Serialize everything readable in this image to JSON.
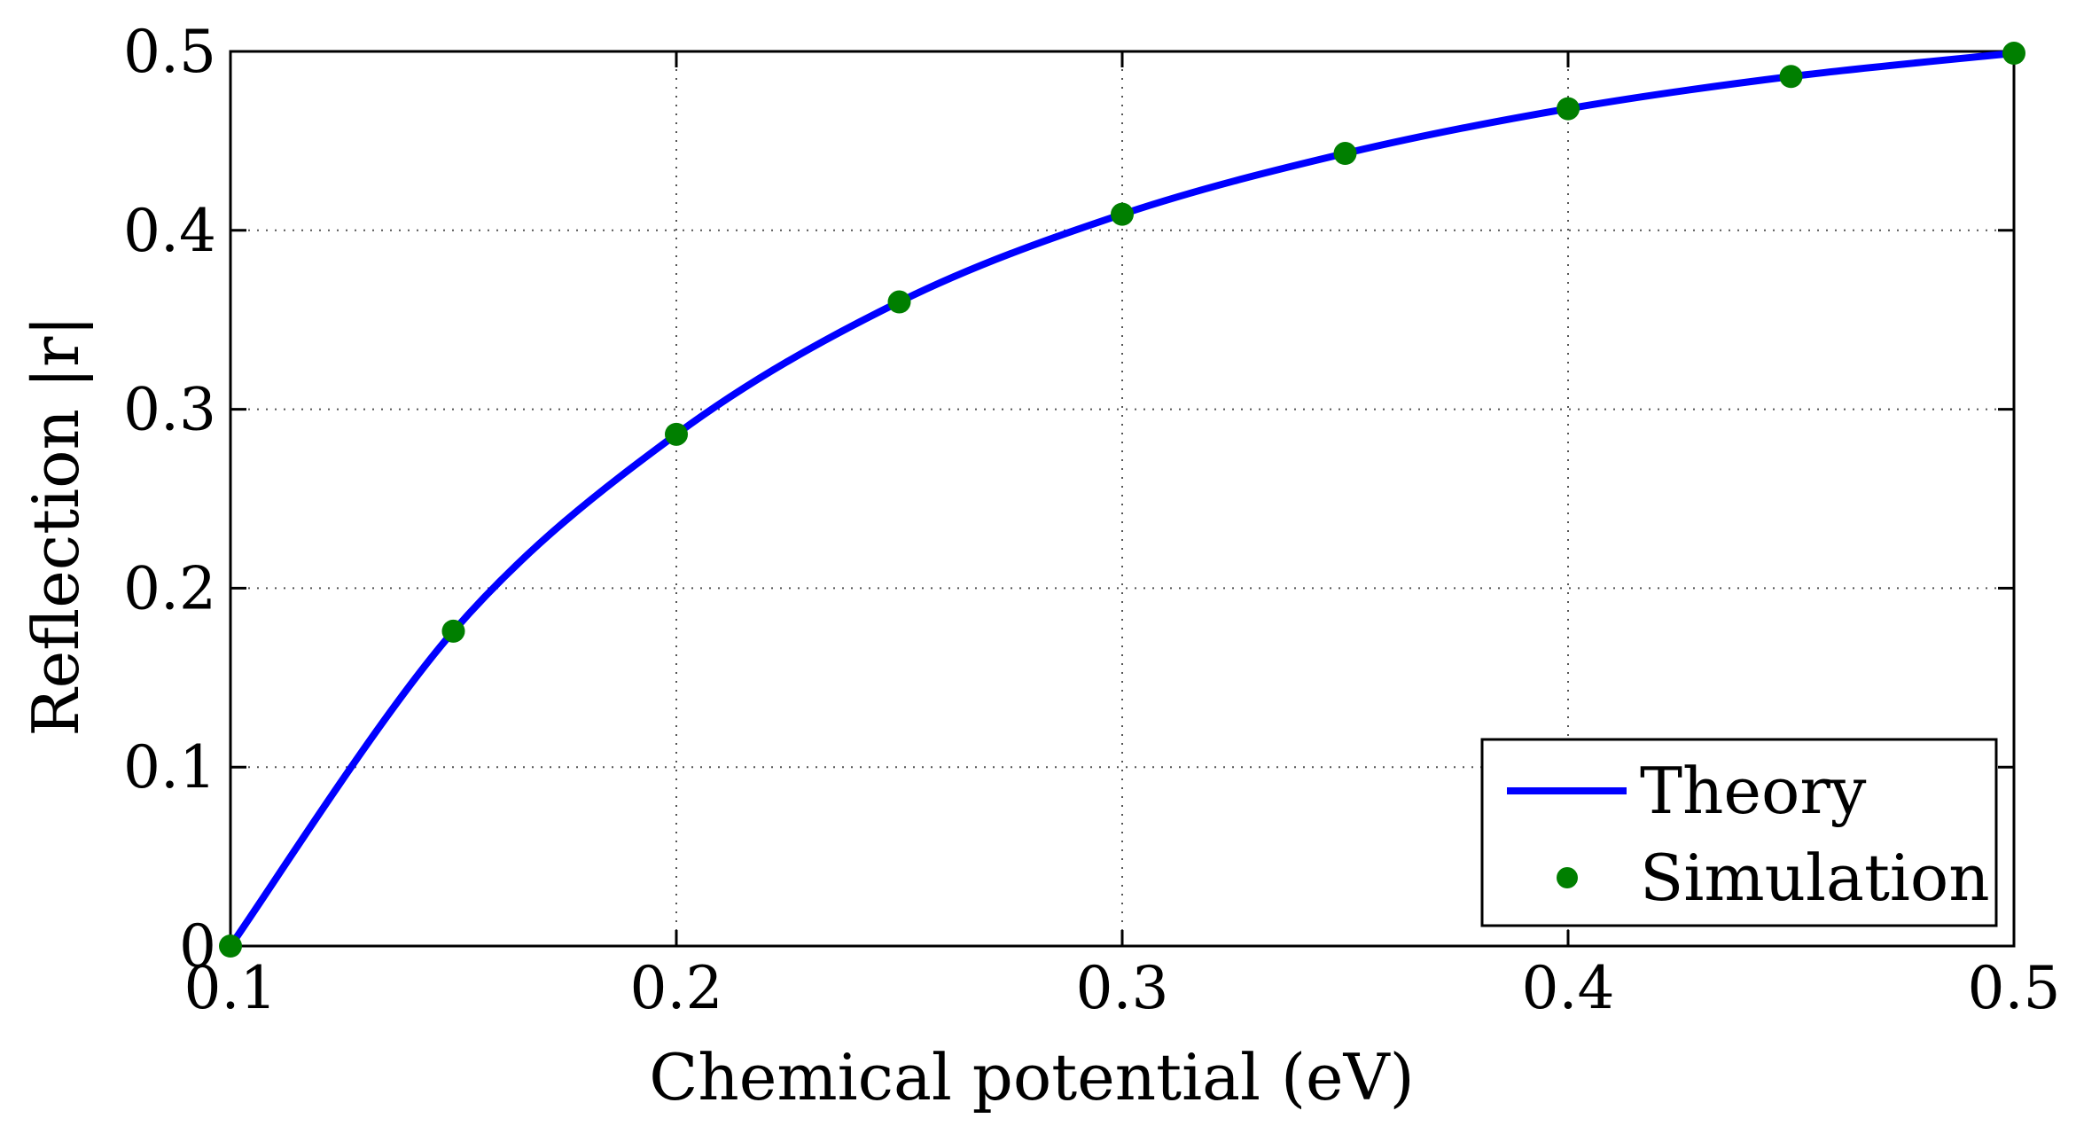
{
  "chart_data": {
    "type": "line",
    "title": "",
    "xlabel": "Chemical potential (eV)",
    "ylabel": "Reflection |r|",
    "xlim": [
      0.1,
      0.5
    ],
    "ylim": [
      0,
      0.5
    ],
    "xticks": [
      0.1,
      0.2,
      0.3,
      0.4,
      0.5
    ],
    "yticks": [
      0,
      0.1,
      0.2,
      0.3,
      0.4,
      0.5
    ],
    "xtick_labels": [
      "0.1",
      "0.2",
      "0.3",
      "0.4",
      "0.5"
    ],
    "ytick_labels": [
      "0",
      "0.1",
      "0.2",
      "0.3",
      "0.4",
      "0.5"
    ],
    "grid": true,
    "grid_style": "dotted",
    "legend_position": "bottom-right",
    "series": [
      {
        "name": "Theory",
        "kind": "line",
        "color": "#0000ff",
        "x": [
          0.1,
          0.15,
          0.2,
          0.25,
          0.3,
          0.35,
          0.4,
          0.45,
          0.5
        ],
        "values": [
          0,
          0.176,
          0.286,
          0.36,
          0.409,
          0.443,
          0.468,
          0.486,
          0.499
        ]
      },
      {
        "name": "Simulation",
        "kind": "scatter",
        "color": "#007f00",
        "x": [
          0.1,
          0.15,
          0.2,
          0.25,
          0.3,
          0.35,
          0.4,
          0.45,
          0.5
        ],
        "values": [
          0,
          0.176,
          0.286,
          0.36,
          0.409,
          0.443,
          0.468,
          0.486,
          0.499
        ]
      }
    ]
  }
}
